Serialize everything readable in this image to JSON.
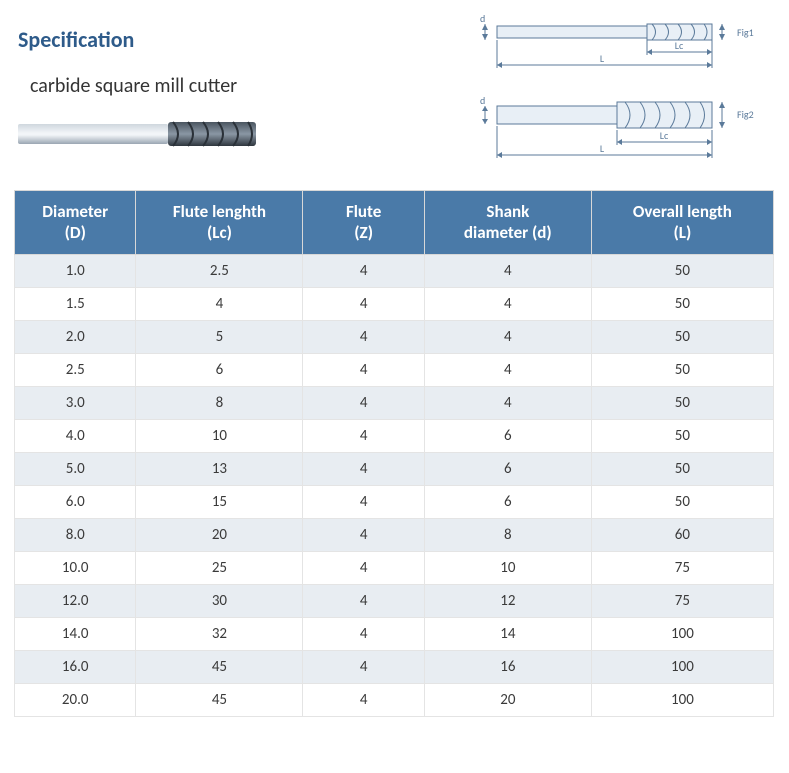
{
  "header": {
    "title": "Specification",
    "product_name": "carbide square mill cutter",
    "fig1_label": "Fig1",
    "fig2_label": "Fig2",
    "dim_L": "L",
    "dim_Lc": "Lc",
    "dim_d": "d"
  },
  "table": {
    "columns": [
      {
        "line1": "Diameter",
        "line2": "(D)"
      },
      {
        "line1": "Flute lenghth",
        "line2": "(Lc)"
      },
      {
        "line1": "Flute",
        "line2": "(Z)"
      },
      {
        "line1": "Shank",
        "line2": "diameter (d)"
      },
      {
        "line1": "Overall length",
        "line2": "(L)"
      }
    ],
    "rows": [
      [
        "1.0",
        "2.5",
        "4",
        "4",
        "50"
      ],
      [
        "1.5",
        "4",
        "4",
        "4",
        "50"
      ],
      [
        "2.0",
        "5",
        "4",
        "4",
        "50"
      ],
      [
        "2.5",
        "6",
        "4",
        "4",
        "50"
      ],
      [
        "3.0",
        "8",
        "4",
        "4",
        "50"
      ],
      [
        "4.0",
        "10",
        "4",
        "6",
        "50"
      ],
      [
        "5.0",
        "13",
        "4",
        "6",
        "50"
      ],
      [
        "6.0",
        "15",
        "4",
        "6",
        "50"
      ],
      [
        "8.0",
        "20",
        "4",
        "8",
        "60"
      ],
      [
        "10.0",
        "25",
        "4",
        "10",
        "75"
      ],
      [
        "12.0",
        "30",
        "4",
        "12",
        "75"
      ],
      [
        "14.0",
        "32",
        "4",
        "14",
        "100"
      ],
      [
        "16.0",
        "45",
        "4",
        "16",
        "100"
      ],
      [
        "20.0",
        "45",
        "4",
        "20",
        "100"
      ]
    ],
    "styling": {
      "header_bg": "#4a7aa8",
      "header_fg": "#ffffff",
      "row_odd_bg": "#e8edf2",
      "row_even_bg": "#ffffff",
      "border_color": "#e4e4e4",
      "header_fontsize": 17,
      "cell_fontsize": 15,
      "column_widths_pct": [
        16,
        22,
        16,
        22,
        24
      ]
    }
  },
  "colors": {
    "title_color": "#2e5b8a",
    "text_color": "#343434",
    "diagram_stroke": "#5b7a9a",
    "page_bg": "#ffffff"
  }
}
